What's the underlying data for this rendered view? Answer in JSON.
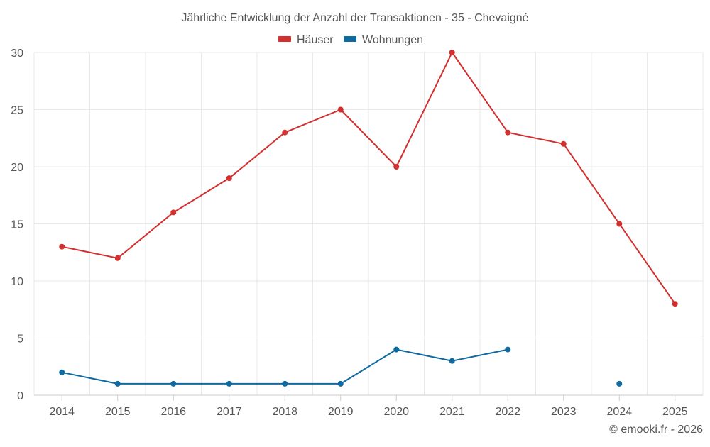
{
  "chart_data": {
    "type": "line",
    "title": "Jährliche Entwicklung der Anzahl der Transaktionen - 35 - Chevaigné",
    "categories": [
      "2014",
      "2015",
      "2016",
      "2017",
      "2018",
      "2019",
      "2020",
      "2021",
      "2022",
      "2023",
      "2024",
      "2025"
    ],
    "series": [
      {
        "name": "Häuser",
        "color": "#d32f2f",
        "values": [
          13,
          12,
          16,
          19,
          23,
          25,
          20,
          30,
          23,
          22,
          15,
          8
        ]
      },
      {
        "name": "Wohnungen",
        "color": "#0f6aa0",
        "values": [
          2,
          1,
          1,
          1,
          1,
          1,
          4,
          3,
          4,
          null,
          1,
          null
        ]
      }
    ],
    "yticks": [
      "0",
      "5",
      "10",
      "15",
      "20",
      "25",
      "30"
    ],
    "ylim": [
      0,
      30
    ],
    "xlabel": "",
    "ylabel": "",
    "grid": true,
    "legend_position": "top-center"
  },
  "credit": "© emooki.fr - 2026"
}
